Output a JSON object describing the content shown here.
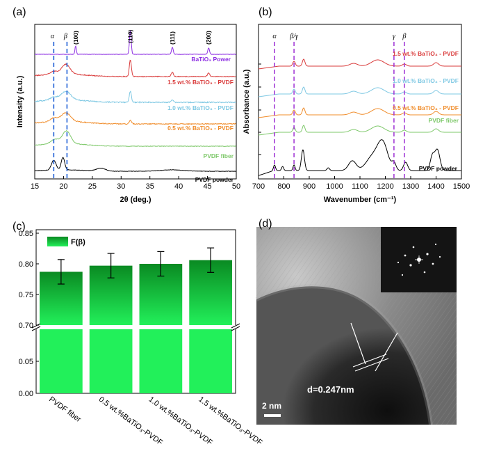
{
  "chart_data": [
    {
      "panel": "(a)",
      "type": "line",
      "xlabel": "2θ (deg.)",
      "ylabel": "Intensity (a.u.)",
      "xlim": [
        15,
        50
      ],
      "xticks": [
        "15",
        "20",
        "25",
        "30",
        "35",
        "40",
        "45",
        "50"
      ],
      "markers": [
        {
          "label": "α",
          "x": 18.3
        },
        {
          "label": "β",
          "x": 20.6
        }
      ],
      "peak_labels": [
        {
          "label": "(100)",
          "x": 22.1
        },
        {
          "label": "(110)",
          "x": 31.6
        },
        {
          "label": "(111)",
          "x": 38.9
        },
        {
          "label": "(200)",
          "x": 45.2
        }
      ],
      "series": [
        {
          "name": "BaTiO₃ Power",
          "color": "#8b2be2"
        },
        {
          "name": "1.5 wt.% BaTiO₃ - PVDF",
          "color": "#d93a3a"
        },
        {
          "name": "1.0 wt.% BaTiO₃ - PVDF",
          "color": "#7ec8e3"
        },
        {
          "name": "0.5 wt.% BaTiO₃ - PVDF",
          "color": "#f08c2a"
        },
        {
          "name": "PVDF fiber",
          "color": "#7ec86a"
        },
        {
          "name": "PVDF powder",
          "color": "#000000"
        }
      ]
    },
    {
      "panel": "(b)",
      "type": "line",
      "xlabel": "Wavenumber (cm⁻¹)",
      "ylabel": "Absorbance (a.u.)",
      "xlim": [
        700,
        1500
      ],
      "xticks": [
        "700",
        "800",
        "900",
        "1000",
        "1100",
        "1200",
        "1300",
        "1400",
        "1500"
      ],
      "markers": [
        {
          "label": "α",
          "x": 763
        },
        {
          "label": "β/γ",
          "x": 840
        },
        {
          "label": "γ",
          "x": 1234
        },
        {
          "label": "β",
          "x": 1275
        }
      ],
      "series": [
        {
          "name": "1.5 wt.% BaTiO₃ - PVDF",
          "color": "#d93a3a"
        },
        {
          "name": "1.0 wt.% BaTiO₃ - PVDF",
          "color": "#7ec8e3"
        },
        {
          "name": "0.5 wt.% BaTiO₃ - PVDF",
          "color": "#f08c2a"
        },
        {
          "name": "PVDF fiber",
          "color": "#7ec86a"
        },
        {
          "name": "PVDF powder",
          "color": "#000000"
        }
      ]
    },
    {
      "panel": "(c)",
      "type": "bar",
      "legend": "F(β)",
      "categories": [
        "PVDF fiber",
        "0.5 wt.%BaTiO₃-PVDF",
        "1.0 wt.%BaTiO₃-PVDF",
        "1.5 wt.%BaTiO₃-PVDF"
      ],
      "values": [
        0.787,
        0.797,
        0.8,
        0.806
      ],
      "errors": [
        0.02,
        0.02,
        0.02,
        0.02
      ],
      "yticks_upper": [
        "0.70",
        "0.75",
        "0.80",
        "0.85"
      ],
      "yticks_lower": [
        "0.00",
        "0.05"
      ],
      "ylim_upper": [
        0.7,
        0.85
      ],
      "ylim_lower": [
        0.0,
        0.1
      ]
    }
  ],
  "panel_d": {
    "label": "(d)",
    "d_spacing": "d=0.247nm",
    "scale_bar": "2 nm"
  }
}
